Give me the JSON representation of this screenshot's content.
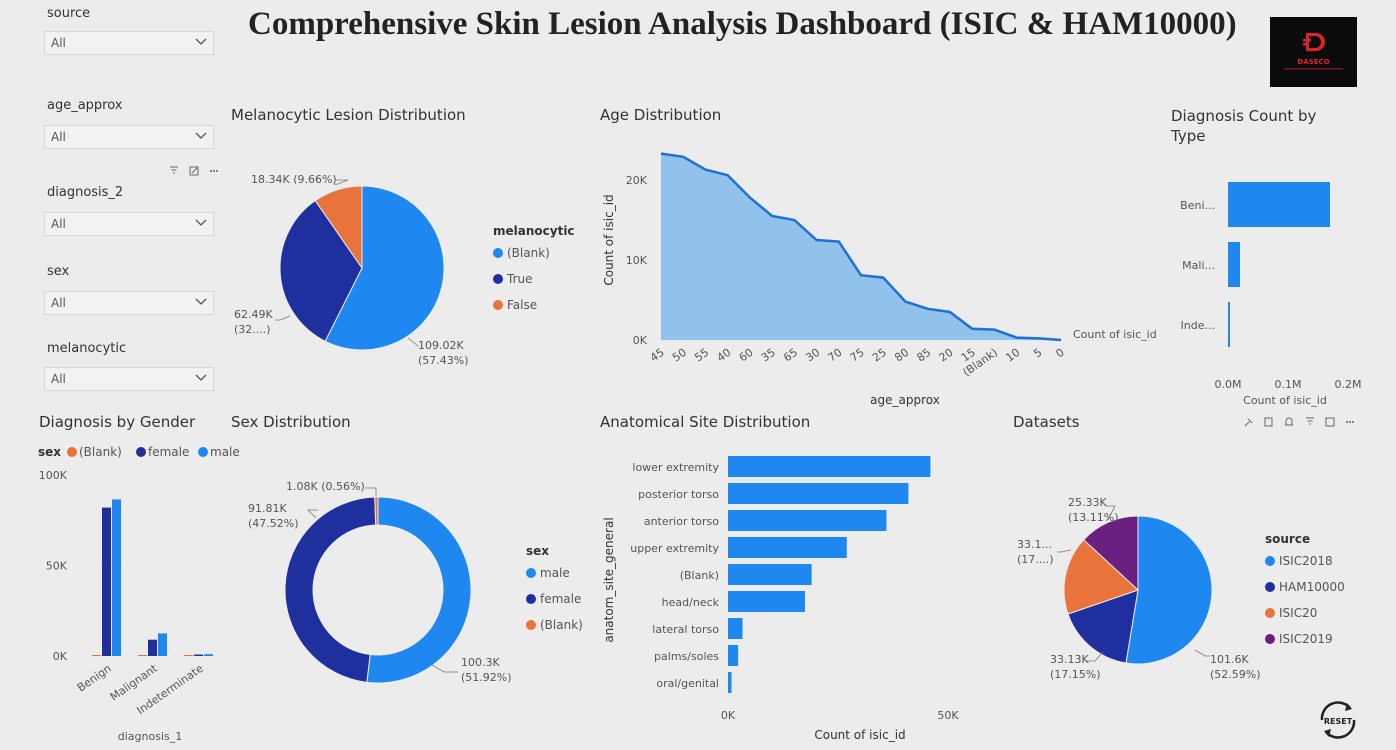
{
  "page": {
    "title": "Comprehensive Skin Lesion Analysis Dashboard (ISIC & HAM10000)",
    "logo_text": "DASECO"
  },
  "slicers": [
    {
      "label": "source",
      "value": "All"
    },
    {
      "label": "age_approx",
      "value": "All"
    },
    {
      "label": "diagnosis_2",
      "value": "All"
    },
    {
      "label": "sex",
      "value": "All"
    },
    {
      "label": "melanocytic",
      "value": "All"
    }
  ],
  "colors": {
    "blue": "#1e88f0",
    "navy": "#1f2f9e",
    "orange": "#e8743b",
    "purple": "#6b1f80",
    "area": "#90c2ec",
    "line": "#1e6fd9"
  },
  "reset_label": "RESET",
  "chart_data": [
    {
      "id": "melanocytic",
      "type": "pie",
      "title": "Melanocytic Lesion Distribution",
      "legend_title": "melanocytic",
      "slices": [
        {
          "name": "(Blank)",
          "value": 109.02,
          "label1": "109.02K",
          "label2": "(57.43%)",
          "color": "#1e88f0"
        },
        {
          "name": "True",
          "value": 62.49,
          "label1": "62.49K",
          "label2": "(32....)",
          "color": "#1f2f9e"
        },
        {
          "name": "False",
          "value": 18.34,
          "label1": "18.34K (9.66%)",
          "label2": "",
          "color": "#e8743b"
        }
      ]
    },
    {
      "id": "age",
      "type": "area",
      "title": "Age Distribution",
      "xlabel": "age_approx",
      "ylabel": "Count of isic_id",
      "series_label": "Count of isic_id",
      "ylim": [
        0,
        25000
      ],
      "yticks": [
        "0K",
        "10K",
        "20K"
      ],
      "categories": [
        "45",
        "50",
        "55",
        "40",
        "60",
        "35",
        "65",
        "30",
        "70",
        "75",
        "25",
        "80",
        "85",
        "20",
        "15",
        "(Blank)",
        "10",
        "5",
        "0"
      ],
      "values": [
        23300,
        22900,
        21300,
        20600,
        17800,
        15500,
        15000,
        12500,
        12300,
        8100,
        7800,
        4800,
        3900,
        3500,
        1400,
        1300,
        300,
        200,
        0
      ]
    },
    {
      "id": "diag_type",
      "type": "bar",
      "title": "Diagnosis Count by Type",
      "xlabel": "Count of isic_id",
      "categories": [
        "Beni...",
        "Mali...",
        "Inde..."
      ],
      "values": [
        0.17,
        0.02,
        0.0015
      ],
      "xticks": [
        "0.0M",
        "0.1M",
        "0.2M"
      ],
      "xlim": [
        0,
        0.2
      ]
    },
    {
      "id": "gender",
      "type": "bar",
      "title": "Diagnosis by Gender",
      "legend_title": "sex",
      "xlabel": "diagnosis_1",
      "categories": [
        "Benign",
        "Malignant",
        "Indeterminate"
      ],
      "yticks": [
        "0K",
        "50K",
        "100K"
      ],
      "ylim": [
        0,
        100000
      ],
      "series": [
        {
          "name": "(Blank)",
          "color": "#e8743b",
          "values": [
            500,
            300,
            50
          ]
        },
        {
          "name": "female",
          "color": "#1f2f9e",
          "values": [
            82000,
            9000,
            800
          ]
        },
        {
          "name": "male",
          "color": "#1e88f0",
          "values": [
            86500,
            12500,
            1000
          ]
        }
      ]
    },
    {
      "id": "sex",
      "type": "pie",
      "title": "Sex Distribution",
      "legend_title": "sex",
      "slices": [
        {
          "name": "male",
          "value": 100.3,
          "label1": "100.3K",
          "label2": "(51.92%)",
          "color": "#1e88f0"
        },
        {
          "name": "female",
          "value": 91.81,
          "label1": "91.81K",
          "label2": "(47.52%)",
          "color": "#1f2f9e"
        },
        {
          "name": "(Blank)",
          "value": 1.08,
          "label1": "1.08K (0.56%)",
          "label2": "",
          "color": "#e8743b"
        }
      ]
    },
    {
      "id": "anat",
      "type": "bar",
      "title": "Anatomical Site Distribution",
      "xlabel": "Count of isic_id",
      "ylabel": "anatom_site_general",
      "categories": [
        "lower extremity",
        "posterior torso",
        "anterior torso",
        "upper extremity",
        "(Blank)",
        "head/neck",
        "lateral torso",
        "palms/soles",
        "oral/genital"
      ],
      "values": [
        46000,
        41000,
        36000,
        27000,
        19000,
        17500,
        3300,
        2300,
        800
      ],
      "xticks": [
        "0K",
        "50K"
      ],
      "xlim": [
        0,
        50000
      ]
    },
    {
      "id": "datasets",
      "type": "pie",
      "title": "Datasets",
      "legend_title": "source",
      "slices": [
        {
          "name": "ISIC2018",
          "value": 101.6,
          "label1": "101.6K",
          "label2": "(52.59%)",
          "color": "#1e88f0"
        },
        {
          "name": "HAM10000",
          "value": 33.13,
          "label1": "33.13K",
          "label2": "(17.15%)",
          "color": "#1f2f9e"
        },
        {
          "name": "ISIC20",
          "value": 33.1,
          "label1": "33.1...",
          "label2": "(17....)",
          "color": "#e8743b"
        },
        {
          "name": "ISIC2019",
          "value": 25.33,
          "label1": "25.33K",
          "label2": "(13.11%)",
          "color": "#6b1f80"
        }
      ]
    }
  ]
}
